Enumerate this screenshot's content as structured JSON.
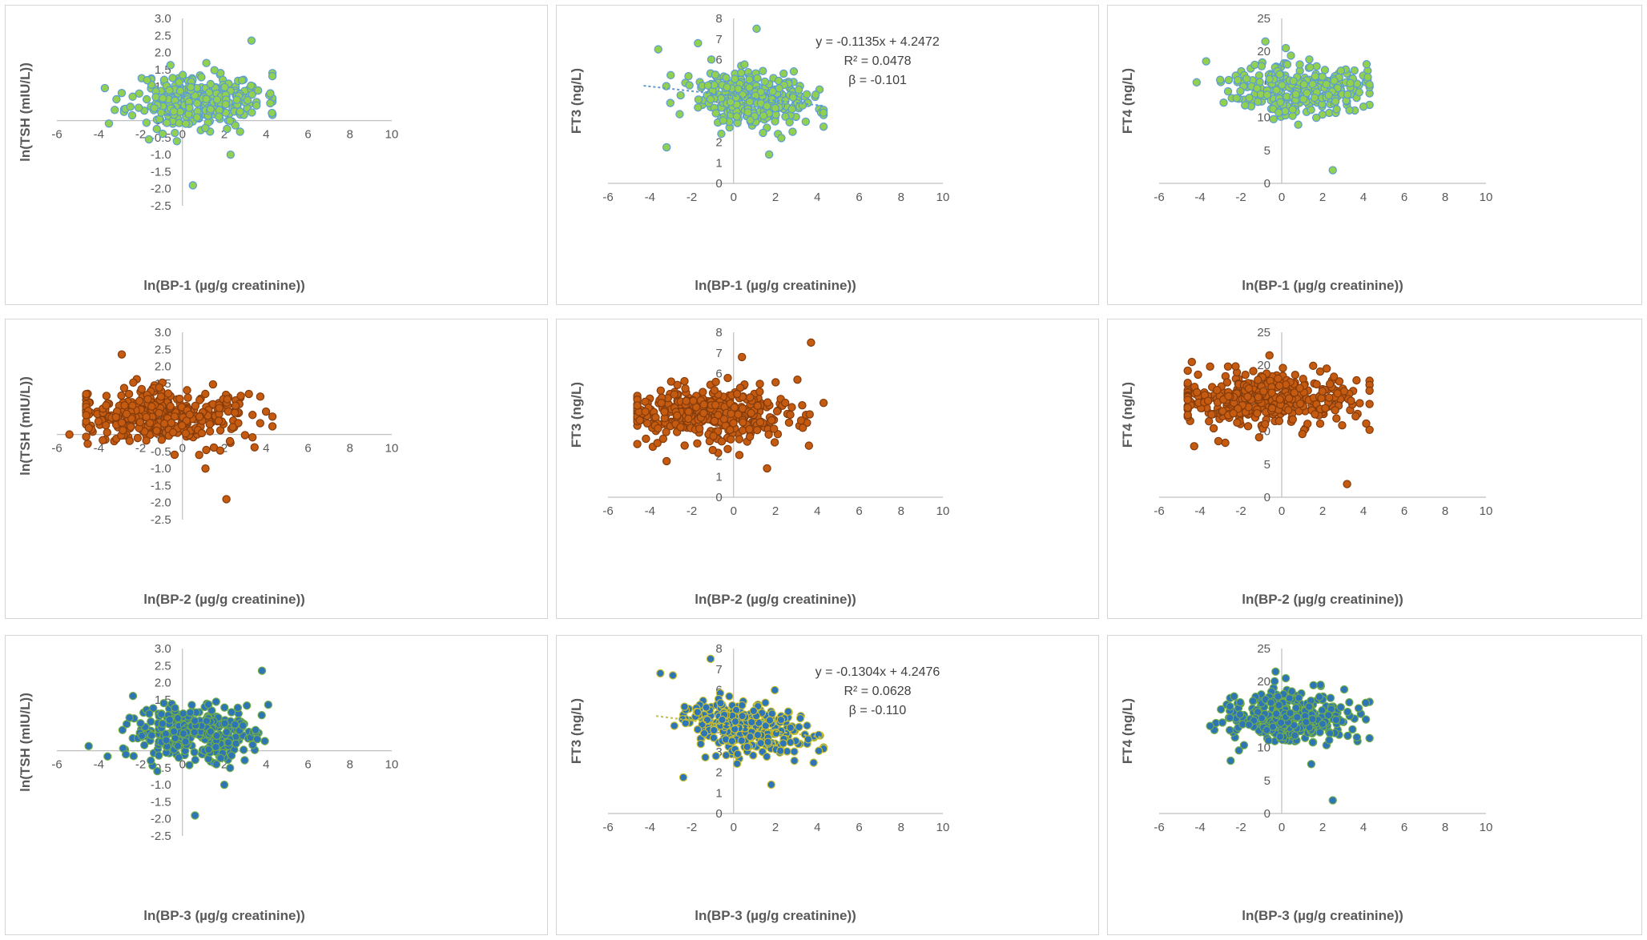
{
  "figure": {
    "description_free": true
  },
  "chart_data": [
    {
      "id": "c1",
      "type": "scatter",
      "xlabel": "ln(BP-1 (µg/g creatinine))",
      "ylabel": "ln(TSH (mIU/L))",
      "xlim": [
        -6,
        10
      ],
      "ylim": [
        -2.5,
        3.0
      ],
      "xticks": [
        "-6",
        "-4",
        "-2",
        "0",
        "2",
        "4",
        "6",
        "8",
        "10"
      ],
      "yticks": [
        "-2.5",
        "-2.0",
        "-1.5",
        "-1.0",
        "-0.5",
        "0.0",
        "0.5",
        "1.0",
        "1.5",
        "2.0",
        "2.5",
        "3.0"
      ],
      "marker": {
        "fill": "#92d050",
        "edge": "#5b9bd5"
      },
      "points_count": 300,
      "cx": 0.8,
      "sx": 1.6,
      "cy": 0.6,
      "sy": 0.4,
      "seed": 11,
      "outliers": [
        [
          3.3,
          2.35
        ],
        [
          0.5,
          -1.9
        ],
        [
          2.3,
          -1.0
        ],
        [
          -1.6,
          -0.55
        ],
        [
          4.2,
          0.8
        ]
      ]
    },
    {
      "id": "c2",
      "type": "scatter",
      "xlabel": "ln(BP-1 (µg/g creatinine))",
      "ylabel": "FT3 (ng/L)",
      "xlim": [
        -6,
        10
      ],
      "ylim": [
        0,
        8
      ],
      "xticks": [
        "-6",
        "-4",
        "-2",
        "0",
        "2",
        "4",
        "6",
        "8",
        "10"
      ],
      "yticks": [
        "0",
        "1",
        "2",
        "3",
        "4",
        "5",
        "6",
        "7",
        "8"
      ],
      "marker": {
        "fill": "#92d050",
        "edge": "#5b9bd5"
      },
      "points_count": 320,
      "cx": 0.8,
      "sx": 1.5,
      "cy": 4.1,
      "sy": 0.65,
      "seed": 23,
      "outliers": [
        [
          -3.2,
          1.75
        ],
        [
          1.1,
          7.5
        ],
        [
          -3.6,
          6.5
        ],
        [
          -1.7,
          6.8
        ],
        [
          1.7,
          1.4
        ]
      ],
      "trendline": {
        "slope": -0.1135,
        "intercept": 4.2472,
        "x_range": [
          -4.3,
          4.3
        ],
        "color": "#5b9bd5"
      },
      "annotations": [
        "y = -0.1135x + 4.2472",
        "R² = 0.0478",
        "β = -0.101"
      ]
    },
    {
      "id": "c3",
      "type": "scatter",
      "xlabel": "ln(BP-1 (µg/g creatinine))",
      "ylabel": "FT4 (ng/L)",
      "xlim": [
        -6,
        10
      ],
      "ylim": [
        0,
        25
      ],
      "xticks": [
        "-6",
        "-4",
        "-2",
        "0",
        "2",
        "4",
        "6",
        "8",
        "10"
      ],
      "yticks": [
        "0",
        "5",
        "10",
        "15",
        "20",
        "25"
      ],
      "marker": {
        "fill": "#92d050",
        "edge": "#5b9bd5"
      },
      "points_count": 300,
      "cx": 0.8,
      "sx": 1.6,
      "cy": 14.5,
      "sy": 2.0,
      "seed": 37,
      "outliers": [
        [
          2.5,
          2.0
        ],
        [
          -0.8,
          21.5
        ],
        [
          -3.7,
          18.5
        ],
        [
          0.2,
          20.5
        ]
      ]
    },
    {
      "id": "c4",
      "type": "scatter",
      "xlabel": "ln(BP-2 (µg/g creatinine))",
      "ylabel": "ln(TSH (mIU/L))",
      "xlim": [
        -6,
        10
      ],
      "ylim": [
        -2.5,
        3.0
      ],
      "xticks": [
        "-6",
        "-4",
        "-2",
        "0",
        "2",
        "4",
        "6",
        "8",
        "10"
      ],
      "yticks": [
        "-2.5",
        "-2.0",
        "-1.5",
        "-1.0",
        "-0.5",
        "0.0",
        "0.5",
        "1.0",
        "1.5",
        "2.0",
        "2.5",
        "3.0"
      ],
      "marker": {
        "fill": "#c55a11",
        "edge": "#843c0c"
      },
      "points_count": 380,
      "cx": -1.0,
      "sx": 2.2,
      "cy": 0.55,
      "sy": 0.4,
      "seed": 41,
      "outliers": [
        [
          -2.9,
          2.35
        ],
        [
          1.1,
          -1.0
        ],
        [
          2.1,
          -1.9
        ],
        [
          -5.4,
          0.0
        ],
        [
          0.8,
          -0.6
        ]
      ]
    },
    {
      "id": "c5",
      "type": "scatter",
      "xlabel": "ln(BP-2 (µg/g creatinine))",
      "ylabel": "FT3 (ng/L)",
      "xlim": [
        -6,
        10
      ],
      "ylim": [
        0,
        8
      ],
      "xticks": [
        "-6",
        "-4",
        "-2",
        "0",
        "2",
        "4",
        "6",
        "8",
        "10"
      ],
      "yticks": [
        "0",
        "1",
        "2",
        "3",
        "4",
        "5",
        "6",
        "7",
        "8"
      ],
      "marker": {
        "fill": "#c55a11",
        "edge": "#843c0c"
      },
      "points_count": 400,
      "cx": -1.0,
      "sx": 2.2,
      "cy": 4.0,
      "sy": 0.65,
      "seed": 53,
      "outliers": [
        [
          3.7,
          7.5
        ],
        [
          -3.2,
          1.75
        ],
        [
          1.6,
          1.4
        ],
        [
          0.4,
          6.8
        ],
        [
          3.6,
          2.5
        ]
      ]
    },
    {
      "id": "c6",
      "type": "scatter",
      "xlabel": "ln(BP-2 (µg/g creatinine))",
      "ylabel": "FT4 (ng/L)",
      "xlim": [
        -6,
        10
      ],
      "ylim": [
        0,
        25
      ],
      "xticks": [
        "-6",
        "-4",
        "-2",
        "0",
        "2",
        "4",
        "6",
        "8",
        "10"
      ],
      "yticks": [
        "0",
        "5",
        "10",
        "15",
        "20",
        "25"
      ],
      "marker": {
        "fill": "#c55a11",
        "edge": "#843c0c"
      },
      "points_count": 380,
      "cx": -1.0,
      "sx": 2.2,
      "cy": 14.5,
      "sy": 2.0,
      "seed": 67,
      "outliers": [
        [
          3.2,
          2.0
        ],
        [
          -4.4,
          20.5
        ],
        [
          -0.6,
          21.5
        ],
        [
          -3.1,
          8.5
        ],
        [
          2.2,
          19.5
        ]
      ]
    },
    {
      "id": "c7",
      "type": "scatter",
      "xlabel": "ln(BP-3 (µg/g creatinine))",
      "ylabel": "ln(TSH (mIU/L))",
      "xlim": [
        -6,
        10
      ],
      "ylim": [
        -2.5,
        3.0
      ],
      "xticks": [
        "-6",
        "-4",
        "-2",
        "0",
        "2",
        "4",
        "6",
        "8",
        "10"
      ],
      "yticks": [
        "-2.5",
        "-2.0",
        "-1.5",
        "-1.0",
        "-0.5",
        "0.0",
        "0.5",
        "1.0",
        "1.5",
        "2.0",
        "2.5",
        "3.0"
      ],
      "marker": {
        "fill": "#2e75b6",
        "edge": "#70ad47"
      },
      "points_count": 330,
      "cx": 0.5,
      "sx": 1.6,
      "cy": 0.55,
      "sy": 0.4,
      "seed": 79,
      "outliers": [
        [
          3.8,
          2.35
        ],
        [
          0.6,
          -1.9
        ],
        [
          2.0,
          -1.0
        ],
        [
          -1.2,
          -0.6
        ],
        [
          4.1,
          1.35
        ]
      ]
    },
    {
      "id": "c8",
      "type": "scatter",
      "xlabel": "ln(BP-3 (µg/g creatinine))",
      "ylabel": "FT3 (ng/L)",
      "xlim": [
        -6,
        10
      ],
      "ylim": [
        0,
        8
      ],
      "xticks": [
        "-6",
        "-4",
        "-2",
        "0",
        "2",
        "4",
        "6",
        "8",
        "10"
      ],
      "yticks": [
        "0",
        "1",
        "2",
        "3",
        "4",
        "5",
        "6",
        "7",
        "8"
      ],
      "marker": {
        "fill": "#2e75b6",
        "edge": "#c9c030"
      },
      "points_count": 340,
      "cx": 0.5,
      "sx": 1.5,
      "cy": 4.1,
      "sy": 0.65,
      "seed": 97,
      "outliers": [
        [
          -1.1,
          7.5
        ],
        [
          -3.5,
          6.8
        ],
        [
          -2.4,
          1.75
        ],
        [
          1.8,
          1.4
        ],
        [
          -2.9,
          6.7
        ]
      ],
      "trendline": {
        "slope": -0.1304,
        "intercept": 4.2476,
        "x_range": [
          -3.7,
          4.3
        ],
        "color": "#c9c030"
      },
      "annotations": [
        "y = -0.1304x + 4.2476",
        "R² = 0.0628",
        "β = -0.110"
      ]
    },
    {
      "id": "c9",
      "type": "scatter",
      "xlabel": "ln(BP-3 (µg/g creatinine))",
      "ylabel": "FT4 (ng/L)",
      "xlim": [
        -6,
        10
      ],
      "ylim": [
        0,
        25
      ],
      "xticks": [
        "-6",
        "-4",
        "-2",
        "0",
        "2",
        "4",
        "6",
        "8",
        "10"
      ],
      "yticks": [
        "0",
        "5",
        "10",
        "15",
        "20",
        "25"
      ],
      "marker": {
        "fill": "#2e75b6",
        "edge": "#70ad47"
      },
      "points_count": 330,
      "cx": 0.5,
      "sx": 1.6,
      "cy": 14.5,
      "sy": 2.0,
      "seed": 113,
      "outliers": [
        [
          2.5,
          2.0
        ],
        [
          -0.3,
          21.5
        ],
        [
          -2.5,
          8.0
        ],
        [
          0.2,
          20.5
        ],
        [
          1.9,
          19.5
        ]
      ]
    }
  ]
}
